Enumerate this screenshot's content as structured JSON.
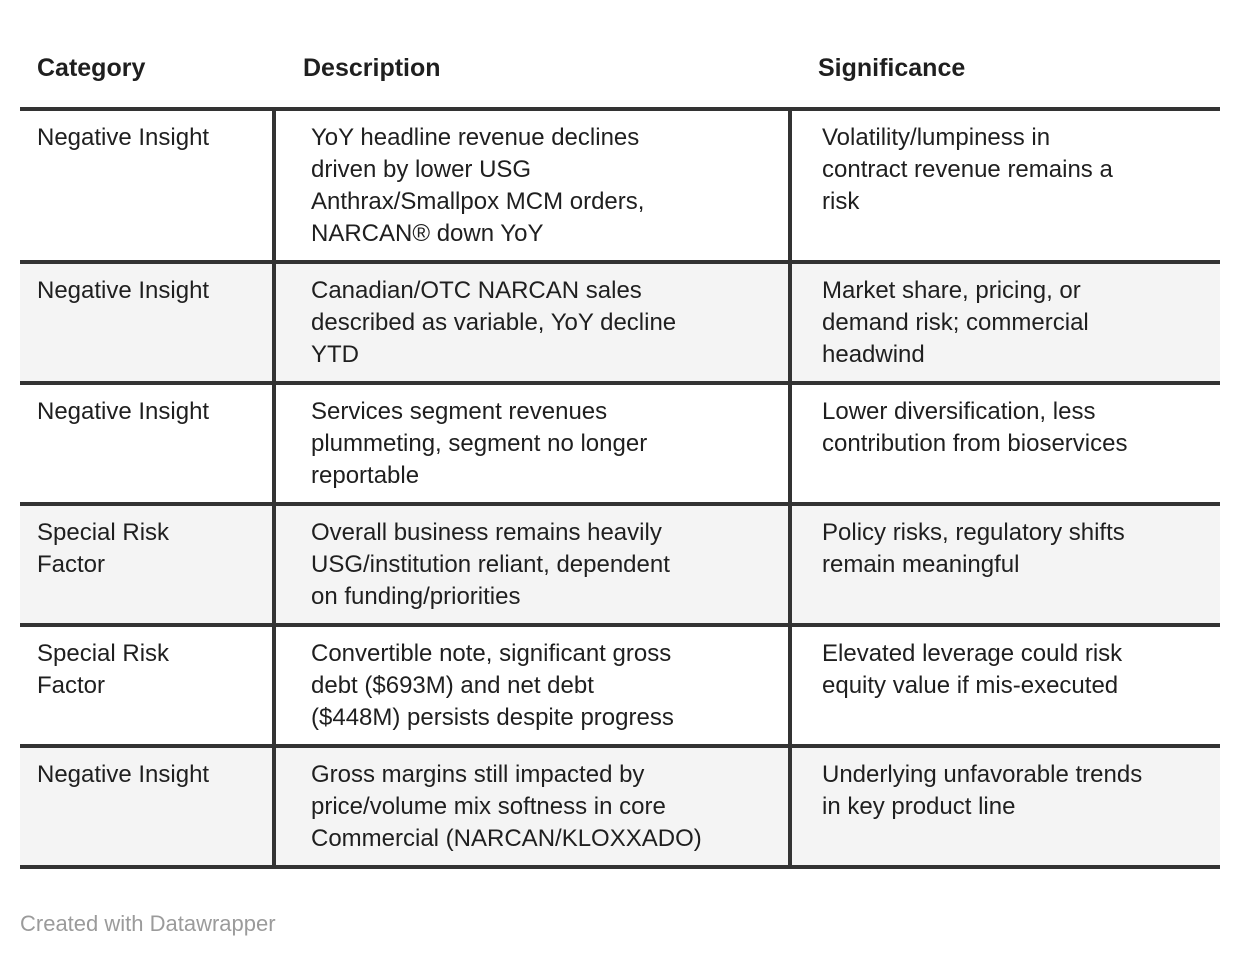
{
  "chart_data": {
    "type": "table",
    "title": "",
    "columns": [
      "Category",
      "Description",
      "Significance"
    ],
    "rows": [
      [
        "Negative Insight",
        "YoY headline revenue declines\ndriven by lower USG\nAnthrax/Smallpox MCM orders,\nNARCAN® down YoY",
        "Volatility/lumpiness in\ncontract revenue remains a\nrisk"
      ],
      [
        "Negative Insight",
        "Canadian/OTC NARCAN sales\ndescribed as variable, YoY decline\nYTD",
        "Market share, pricing, or\ndemand risk; commercial\nheadwind"
      ],
      [
        "Negative Insight",
        "Services segment revenues\nplummeting, segment no longer\nreportable",
        "Lower diversification, less\ncontribution from bioservices"
      ],
      [
        "Special Risk\nFactor",
        "Overall business remains heavily\nUSG/institution reliant, dependent\non funding/priorities",
        "Policy risks, regulatory shifts\nremain meaningful"
      ],
      [
        "Special Risk\nFactor",
        "Convertible note, significant gross\ndebt ($693M) and net debt\n($448M) persists despite progress",
        "Elevated leverage could risk\nequity value if mis-executed"
      ],
      [
        "Negative Insight",
        "Gross margins still impacted by\nprice/volume mix softness in core\nCommercial (NARCAN/KLOXXADO)",
        "Underlying unfavorable trends\nin key product line"
      ]
    ],
    "layout_hints": {
      "striped_rows": true,
      "stripe_on": "even",
      "header_divider": true,
      "column_dividers_in_body_only": true
    }
  },
  "colors": {
    "border": "#333333",
    "stripe": "#f4f4f4",
    "text": "#1f1f1f",
    "footer_text": "#9b9b9b",
    "background": "#ffffff"
  },
  "footer": {
    "credit": "Created with Datawrapper"
  }
}
